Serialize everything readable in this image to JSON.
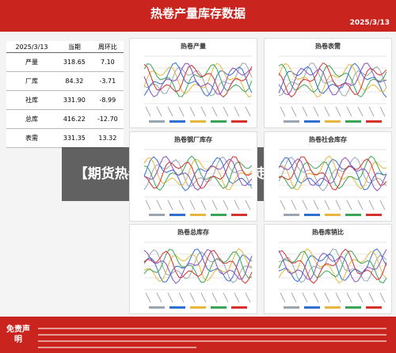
{
  "header": {
    "title": "热卷产量库存数据",
    "date": "2025/3/13"
  },
  "table": {
    "header": [
      "2025/3/13",
      "当期",
      "周环比"
    ],
    "rows": [
      [
        "产量",
        "318.65",
        "7.10"
      ],
      [
        "厂库",
        "84.32",
        "-3.71"
      ],
      [
        "社库",
        "331.90",
        "-8.99"
      ],
      [
        "总库",
        "416.22",
        "-12.70"
      ],
      [
        "表需",
        "331.35",
        "13.32"
      ]
    ]
  },
  "charts": [
    {
      "title": "热卷产量"
    },
    {
      "title": "热卷表需"
    },
    {
      "title": "热卷钢厂库存"
    },
    {
      "title": "热卷社会库存"
    },
    {
      "title": "热卷总库存"
    },
    {
      "title": "热卷库销比"
    }
  ],
  "banner": {
    "text": "【期货热卷今日行情,期货热卷走势分析】"
  },
  "footer": {
    "label": "免责声明"
  }
}
